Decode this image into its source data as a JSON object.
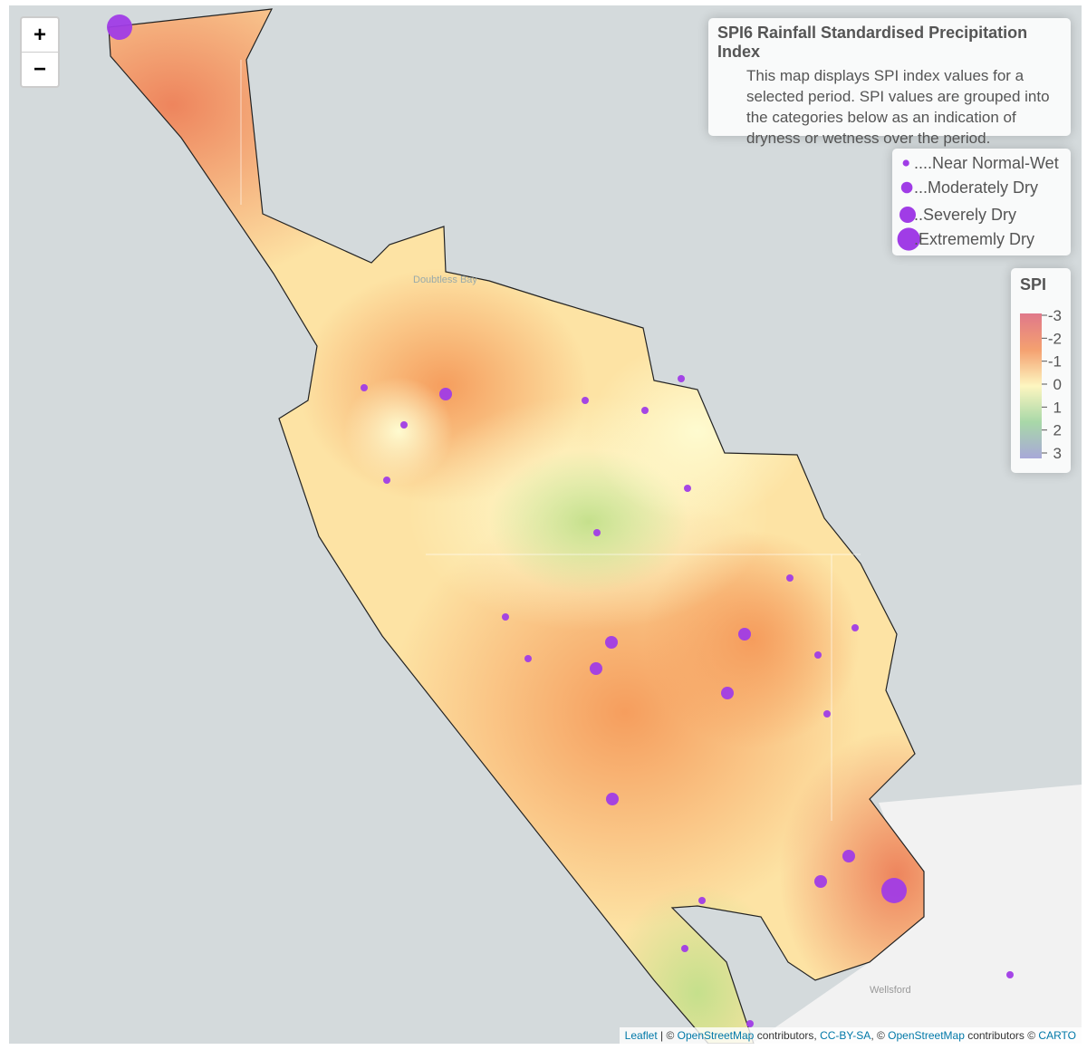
{
  "map": {
    "info": {
      "title": "SPI6 Rainfall Standardised Precipitation Index",
      "description": "This map displays SPI index values for a selected period. SPI values are grouped into the categories below as an indication of dryness or wetness over the period."
    },
    "legend": [
      "....Near Normal-Wet",
      "...Moderately Dry",
      "..Severely Dry",
      ".Extrememly Dry"
    ],
    "scale": {
      "title": "SPI",
      "ticks": [
        -3,
        -2,
        -1,
        0,
        1,
        2,
        3
      ]
    },
    "place_labels": [
      "Doubtless Bay",
      "Wellsford"
    ],
    "zoom": [
      "+",
      "−"
    ],
    "attribution": [
      "Leaflet",
      " | © ",
      "OpenStreetMap",
      " contributors, ",
      "CC-BY-SA",
      ", © ",
      "OpenStreetMap",
      " contributors © ",
      "CARTO"
    ]
  }
}
